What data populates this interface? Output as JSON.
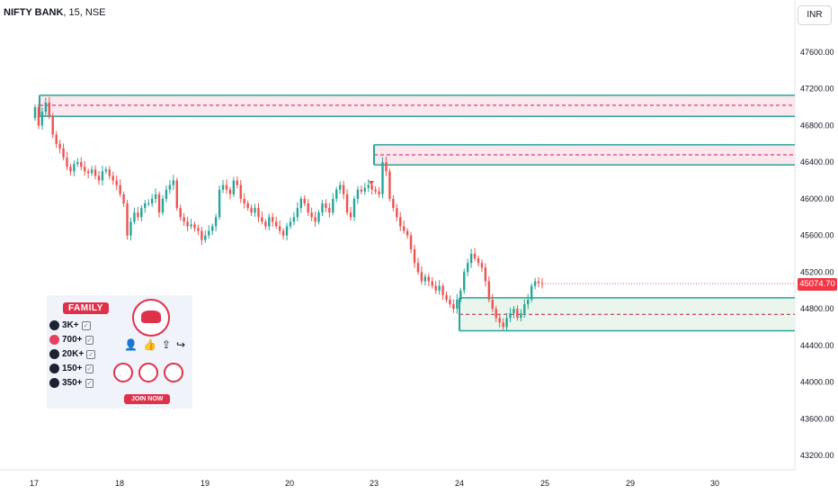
{
  "header": {
    "symbol": "NIFTY BANK",
    "details": ", 15, NSE",
    "currency_button": "INR"
  },
  "current_price": "45074.70",
  "colors": {
    "up": "#26a69a",
    "down": "#ef5350",
    "zone_supply_fill": "#fce4ec",
    "zone_demand_fill": "#e8f5e9",
    "zone_border": "#26a69a",
    "midline": "#c2185b",
    "price_tag": "#f23645"
  },
  "promo": {
    "title": "FAMILY",
    "stats": [
      {
        "icon": "facebook-icon",
        "value": "3K+"
      },
      {
        "icon": "instagram-icon",
        "value": "700+"
      },
      {
        "icon": "telegram-icon",
        "value": "20K+"
      },
      {
        "icon": "twitter-icon",
        "value": "150+"
      },
      {
        "icon": "tradingview-icon",
        "value": "350+"
      }
    ],
    "join_label": "JOIN NOW"
  },
  "chart_data": {
    "type": "candlestick",
    "y_ticks": [
      "47600.00",
      "47200.00",
      "46800.00",
      "46400.00",
      "46000.00",
      "45600.00",
      "45200.00",
      "44800.00",
      "44400.00",
      "44000.00",
      "43600.00",
      "43200.00"
    ],
    "ylim": [
      43100,
      47950
    ],
    "x_ticks": [
      "17",
      "18",
      "19",
      "20",
      "23",
      "24",
      "25",
      "29",
      "30"
    ],
    "zones": [
      {
        "kind": "supply",
        "top": 47130,
        "bottom": 46900,
        "mid": 47020,
        "start_day": "17"
      },
      {
        "kind": "supply",
        "top": 46590,
        "bottom": 46370,
        "mid": 46480,
        "start_day": "23"
      },
      {
        "kind": "demand",
        "top": 44920,
        "bottom": 44560,
        "mid": 44740,
        "start_day": "24"
      }
    ],
    "candles_close": [
      47000,
      46800,
      46950,
      47050,
      46900,
      46700,
      46600,
      46550,
      46450,
      46350,
      46300,
      46380,
      46400,
      46350,
      46300,
      46280,
      46320,
      46250,
      46200,
      46300,
      46320,
      46250,
      46200,
      46150,
      46050,
      45950,
      45600,
      45750,
      45850,
      45800,
      45900,
      45950,
      45950,
      46000,
      46050,
      45850,
      46000,
      46100,
      46150,
      46200,
      45900,
      45800,
      45750,
      45700,
      45720,
      45680,
      45650,
      45550,
      45600,
      45650,
      45700,
      45800,
      46100,
      46150,
      46100,
      46050,
      46200,
      46150,
      46000,
      45950,
      45900,
      45850,
      45900,
      45800,
      45750,
      45700,
      45800,
      45750,
      45700,
      45650,
      45600,
      45700,
      45750,
      45800,
      45900,
      46000,
      45950,
      45850,
      45800,
      45750,
      45850,
      45950,
      45900,
      45850,
      46000,
      46100,
      46150,
      46050,
      45850,
      45800,
      46000,
      46100,
      46080,
      46120,
      46150,
      46100,
      46080,
      46050,
      46400,
      46300,
      46000,
      45900,
      45800,
      45700,
      45650,
      45600,
      45450,
      45300,
      45200,
      45100,
      45150,
      45100,
      45050,
      45000,
      45050,
      44950,
      44900,
      44850,
      44800,
      44900,
      45000,
      45200,
      45300,
      45400,
      45350,
      45300,
      45250,
      45100,
      44900,
      44800,
      44700,
      44650,
      44600,
      44700,
      44750,
      44800,
      44700,
      44750,
      44850,
      44900,
      45050,
      45100,
      45080,
      45075
    ]
  }
}
